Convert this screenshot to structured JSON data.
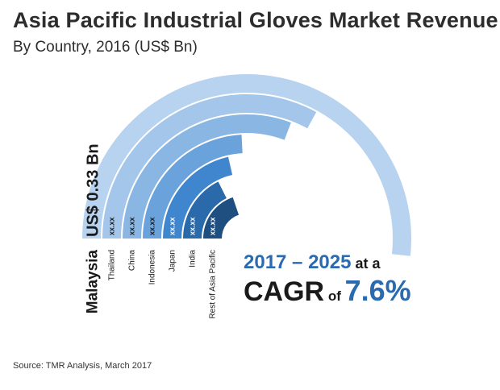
{
  "title": "Asia Pacific Industrial Gloves Market Revenue",
  "subtitle": "By Country, 2016 (US$ Bn)",
  "chart_data": {
    "type": "radial-bar",
    "categories": [
      "Malaysia",
      "Thailand",
      "China",
      "Indonesia",
      "Japan",
      "India",
      "Rest of Asia Pacific"
    ],
    "value_labels": [
      "US$ 0.33 Bn",
      "xx.xx",
      "xx.xx",
      "xx.xx",
      "xx.xx",
      "xx.xx",
      "xx.xx"
    ],
    "values": [
      0.33,
      null,
      null,
      null,
      null,
      null,
      null
    ],
    "sweep_fraction": [
      0.94,
      0.6,
      0.56,
      0.44,
      0.39,
      0.32,
      0.36
    ],
    "colors": [
      "#b7d3ef",
      "#a3c6ea",
      "#8ab6e3",
      "#6aa2dc",
      "#3f86cf",
      "#2b6aaa",
      "#1f4f80"
    ]
  },
  "cagr": {
    "period": "2017 – 2025",
    "at_a": " at a",
    "label": "CAGR",
    "of": " of ",
    "value": "7.6%"
  },
  "source": "Source:  TMR Analysis, March 2017"
}
